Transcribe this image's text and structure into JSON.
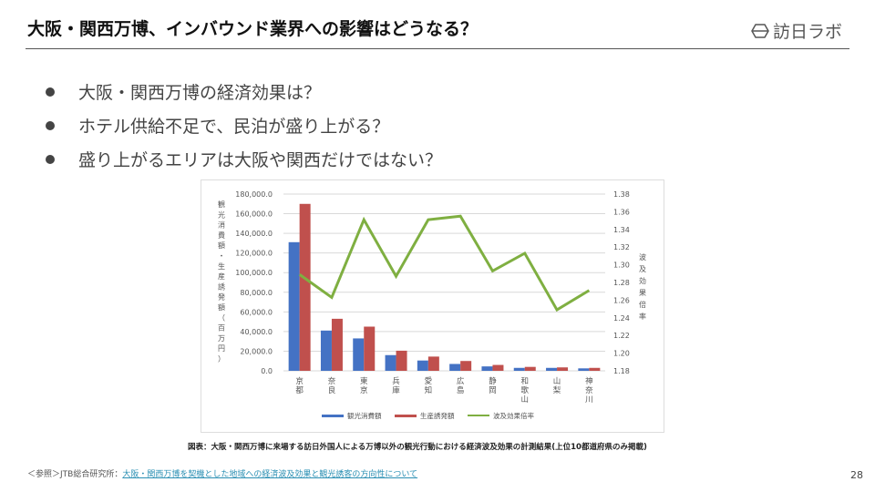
{
  "header": {
    "title": "大阪・関西万博、インバウンド業界への影響はどうなる？",
    "logo_text": "訪日ラボ"
  },
  "bullets": [
    "大阪・関西万博の経済効果は？",
    "ホテル供給不足で、民泊が盛り上がる？",
    "盛り上がるエリアは大阪や関西だけではない？"
  ],
  "chart_data": {
    "type": "bar",
    "categories": [
      "京都",
      "奈良",
      "東京",
      "兵庫",
      "愛知",
      "広島",
      "静岡",
      "和歌山",
      "山梨",
      "神奈川"
    ],
    "series": [
      {
        "name": "観光消費額",
        "type": "bar",
        "axis": "left",
        "color": "#4472c4",
        "values": [
          131000,
          41000,
          33000,
          16000,
          10500,
          7000,
          4500,
          3000,
          3000,
          2500
        ]
      },
      {
        "name": "生産誘発額",
        "type": "bar",
        "axis": "left",
        "color": "#c0504d",
        "values": [
          170000,
          53000,
          45000,
          20500,
          14500,
          10000,
          6000,
          4000,
          3500,
          3000
        ]
      },
      {
        "name": "波及効果倍率",
        "type": "line",
        "axis": "right",
        "color": "#7faf41",
        "values": [
          1.289,
          1.263,
          1.351,
          1.287,
          1.351,
          1.355,
          1.293,
          1.313,
          1.249,
          1.271
        ]
      }
    ],
    "ylabel": "観光消費額・生産誘発額（百万円）",
    "y2label": "波及効果倍率",
    "ylim": [
      0,
      180000
    ],
    "y2lim": [
      1.18,
      1.38
    ],
    "yticks": [
      "0.0",
      "20,000.0",
      "40,000.0",
      "60,000.0",
      "80,000.0",
      "100,000.0",
      "120,000.0",
      "140,000.0",
      "160,000.0",
      "180,000.0"
    ],
    "y2ticks": [
      "1.18",
      "1.20",
      "1.22",
      "1.24",
      "1.26",
      "1.28",
      "1.30",
      "1.32",
      "1.34",
      "1.36",
      "1.38"
    ],
    "grid": true,
    "legend": "bottom"
  },
  "caption": "図表：大阪・関西万博に来場する訪日外国人による万博以外の観光行動における経済波及効果の計測結果(上位10都道府県のみ掲載)",
  "footer": {
    "prefix": "＜参照＞JTB総合研究所：",
    "link": "大阪・関西万博を契機とした地域への経済波及効果と観光誘客の方向性について"
  },
  "page_number": "28"
}
